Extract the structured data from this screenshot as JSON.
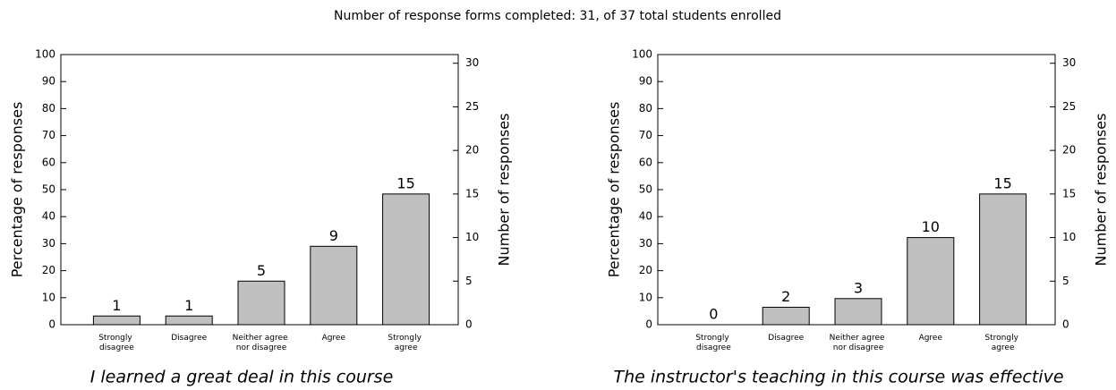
{
  "title": "Number of response forms completed: 31, of 37 total students enrolled",
  "chart_data": [
    {
      "type": "bar",
      "title": "I learned a great deal in this course",
      "ylabel": "Percentage of responses",
      "y2label": "Number of responses",
      "categories": [
        "Strongly disagree",
        "Disagree",
        "Neither agree nor disagree",
        "Agree",
        "Strongly agree"
      ],
      "series": [
        {
          "color": "#c0c0c0",
          "axis": "y2",
          "values": [
            1,
            1,
            5,
            9,
            15
          ]
        }
      ],
      "ylim": [
        0,
        100
      ],
      "yticks": [
        0,
        10,
        20,
        30,
        40,
        50,
        60,
        70,
        80,
        90,
        100
      ],
      "y2lim": [
        0,
        31
      ],
      "y2ticks": [
        0,
        5,
        10,
        15,
        20,
        25,
        30
      ],
      "grid": false
    },
    {
      "type": "bar",
      "title": "The instructor's teaching in this course was effective",
      "ylabel": "Percentage of responses",
      "y2label": "Number of responses",
      "categories": [
        "Strongly disagree",
        "Disagree",
        "Neither agree nor disagree",
        "Agree",
        "Strongly agree"
      ],
      "series": [
        {
          "color": "#c0c0c0",
          "axis": "y2",
          "values": [
            0,
            2,
            3,
            10,
            15
          ]
        }
      ],
      "ylim": [
        0,
        100
      ],
      "yticks": [
        0,
        10,
        20,
        30,
        40,
        50,
        60,
        70,
        80,
        90,
        100
      ],
      "y2lim": [
        0,
        31
      ],
      "y2ticks": [
        0,
        5,
        10,
        15,
        20,
        25,
        30
      ],
      "grid": false
    }
  ]
}
